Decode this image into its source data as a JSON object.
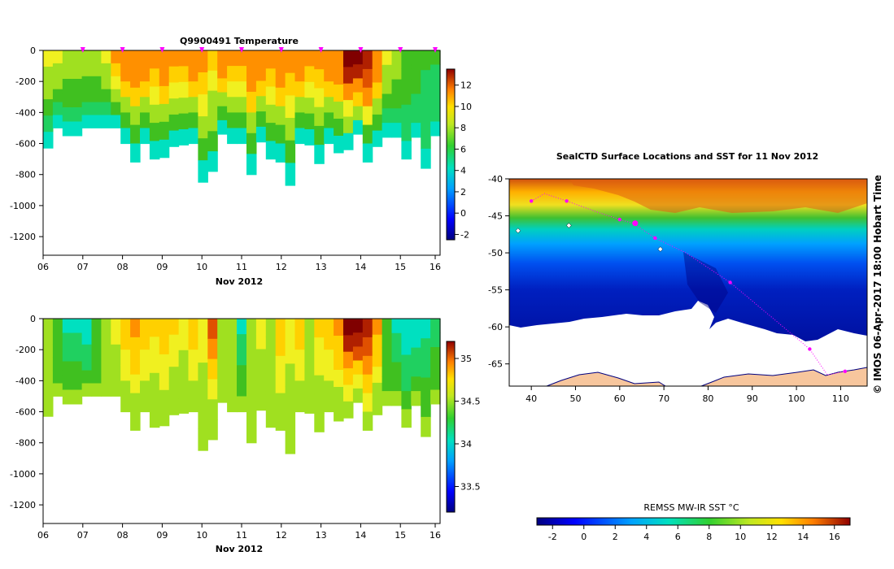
{
  "chart_data": [
    {
      "type": "heatmap",
      "title": "Q9900491  Temperature",
      "xlabel": "Nov 2012",
      "ylabel": "",
      "x_ticks": [
        "06",
        "07",
        "08",
        "09",
        "10",
        "11",
        "12",
        "13",
        "14",
        "15",
        "16"
      ],
      "y_ticks": [
        "0",
        "-200",
        "-400",
        "-600",
        "-800",
        "-1000",
        "-1200"
      ],
      "ylim": [
        -1320,
        0
      ],
      "colorbar": {
        "ticks": [
          "-2",
          "0",
          "2",
          "4",
          "6",
          "8",
          "10",
          "12"
        ],
        "range": [
          -2.5,
          13.5
        ]
      },
      "profile_days": [
        6.0,
        6.25,
        6.5,
        6.75,
        7.0,
        7.25,
        7.5,
        7.75,
        8.0,
        8.25,
        8.5,
        8.75,
        9.0,
        9.25,
        9.5,
        9.75,
        10.0,
        10.25,
        10.5,
        10.75,
        11.0,
        11.25,
        11.5,
        11.75,
        12.0,
        12.25,
        12.5,
        12.75,
        13.0,
        13.25,
        13.5,
        13.75,
        14.0,
        14.25,
        14.5,
        14.75,
        15.0,
        15.25,
        15.5,
        15.75,
        16.0
      ],
      "profile_max_depth": [
        630,
        500,
        550,
        550,
        500,
        500,
        500,
        500,
        600,
        720,
        600,
        700,
        690,
        620,
        610,
        600,
        850,
        780,
        540,
        600,
        600,
        800,
        590,
        700,
        720,
        870,
        600,
        610,
        730,
        600,
        660,
        640,
        540,
        720,
        620,
        560,
        560,
        700,
        560,
        760,
        550
      ],
      "profile_surface_temp": [
        7,
        7,
        6.5,
        6.5,
        6,
        6,
        7,
        9,
        10,
        10,
        10,
        9.5,
        10,
        9,
        9,
        10,
        9,
        8,
        10,
        9,
        9.5,
        10,
        10,
        9,
        10,
        9,
        10,
        9.5,
        9.5,
        10,
        10,
        12.5,
        13,
        12,
        10,
        7,
        6,
        5,
        5,
        4.5,
        4.5
      ],
      "surfacing_markers_days": [
        7,
        8,
        9,
        10,
        11,
        12,
        13,
        14,
        15,
        16
      ]
    },
    {
      "type": "heatmap",
      "title": "",
      "xlabel": "Nov 2012",
      "ylabel": "",
      "x_ticks": [
        "06",
        "07",
        "08",
        "09",
        "10",
        "11",
        "12",
        "13",
        "14",
        "15",
        "16"
      ],
      "y_ticks": [
        "0",
        "-200",
        "-400",
        "-600",
        "-800",
        "-1000",
        "-1200"
      ],
      "ylim": [
        -1320,
        0
      ],
      "colorbar": {
        "ticks": [
          "33.5",
          "34",
          "34.5",
          "35"
        ],
        "range": [
          33.2,
          35.2
        ]
      },
      "profile_days": [
        6.0,
        6.25,
        6.5,
        6.75,
        7.0,
        7.25,
        7.5,
        7.75,
        8.0,
        8.25,
        8.5,
        8.75,
        9.0,
        9.25,
        9.5,
        9.75,
        10.0,
        10.25,
        10.5,
        10.75,
        11.0,
        11.25,
        11.5,
        11.75,
        12.0,
        12.25,
        12.5,
        12.75,
        13.0,
        13.25,
        13.5,
        13.75,
        14.0,
        14.25,
        14.5,
        14.75,
        15.0,
        15.25,
        15.5,
        15.75,
        16.0
      ],
      "profile_max_depth": [
        630,
        500,
        550,
        550,
        500,
        500,
        500,
        500,
        600,
        720,
        600,
        700,
        690,
        620,
        610,
        600,
        850,
        780,
        540,
        600,
        600,
        800,
        590,
        700,
        720,
        870,
        600,
        610,
        730,
        600,
        660,
        640,
        540,
        720,
        620,
        560,
        560,
        700,
        560,
        760,
        550
      ],
      "profile_surface_sal": [
        34.2,
        34.1,
        33.9,
        33.9,
        33.8,
        34.1,
        34.3,
        34.4,
        34.6,
        34.7,
        34.6,
        34.5,
        34.6,
        34.5,
        34.4,
        34.6,
        34.4,
        34.8,
        34.3,
        34.2,
        33.9,
        34.2,
        34.4,
        34.3,
        34.6,
        34.4,
        34.6,
        34.3,
        34.5,
        34.6,
        34.7,
        35.1,
        35.2,
        35.0,
        34.7,
        34.1,
        33.9,
        33.8,
        33.8,
        33.9,
        34.0
      ]
    },
    {
      "type": "heatmap",
      "title": "SealCTD Surface Locations and SST for 11 Nov 2012",
      "xlabel": "",
      "ylabel": "",
      "x_ticks": [
        "40",
        "50",
        "60",
        "70",
        "80",
        "90",
        "100",
        "110"
      ],
      "y_ticks": [
        "-40",
        "-45",
        "-50",
        "-55",
        "-60",
        "-65"
      ],
      "xlim": [
        35,
        116
      ],
      "ylim": [
        -68,
        -40
      ],
      "colorbar": {
        "label": "REMSS MW-IR SST °C",
        "ticks": [
          "-2",
          "0",
          "2",
          "4",
          "6",
          "8",
          "10",
          "12",
          "14",
          "16"
        ],
        "range": [
          -3,
          17
        ]
      },
      "seal_track": [
        [
          40,
          -43
        ],
        [
          43,
          -42
        ],
        [
          48,
          -43
        ],
        [
          55,
          -44.5
        ],
        [
          60,
          -45.5
        ],
        [
          63,
          -46
        ],
        [
          68,
          -48
        ],
        [
          75,
          -50
        ],
        [
          85,
          -54
        ],
        [
          95,
          -59
        ],
        [
          103,
          -63
        ],
        [
          107,
          -66.5
        ],
        [
          111,
          -66
        ]
      ],
      "credit": "© IMOS 06-Apr-2017 18:00 Hobart Time"
    }
  ],
  "colors": {
    "palette": [
      "#00007f",
      "#0000c8",
      "#0050ff",
      "#00b0ff",
      "#00e0c0",
      "#20d060",
      "#40c020",
      "#a0e020",
      "#f0f020",
      "#ffd000",
      "#ff9000",
      "#e05000",
      "#b02000",
      "#800000"
    ],
    "land": "#f7c69d",
    "marker": "#ff00ff"
  }
}
